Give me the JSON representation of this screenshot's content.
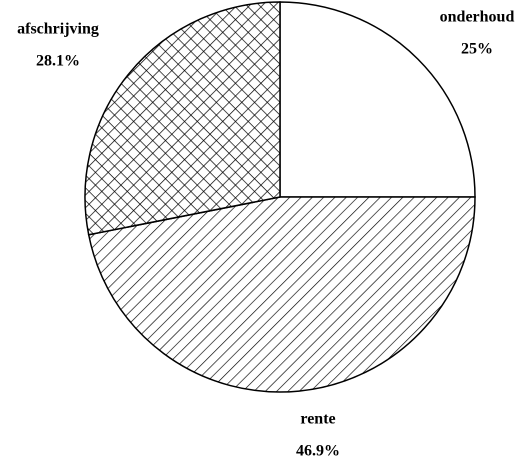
{
  "chart_data": {
    "type": "pie",
    "categories": [
      "onderhoud",
      "rente",
      "afschrijving"
    ],
    "values": [
      25,
      46.9,
      28.1
    ],
    "value_labels": [
      "25%",
      "46.9%",
      "28.1%"
    ],
    "patterns": [
      "none",
      "hatch",
      "crosshatch"
    ],
    "start": "top",
    "direction": "clockwise"
  }
}
